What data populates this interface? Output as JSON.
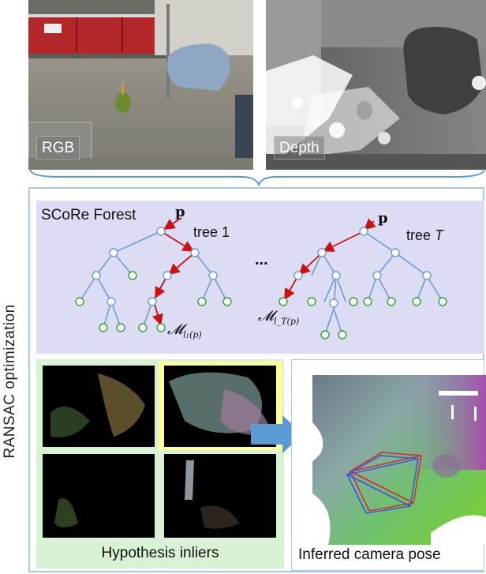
{
  "images": {
    "rgb_label": "RGB",
    "depth_label": "Depth"
  },
  "side_label": "RANSAC optimization",
  "forest": {
    "title": "SCoRe Forest",
    "point_symbol": "p",
    "tree1_label": "tree 1",
    "treeT_label_prefix": "tree ",
    "treeT_label_var": "T",
    "ellipsis": "...",
    "leaf1_label": "𝓜",
    "leaf1_sub": "l₁(p)",
    "leafT_label": "𝓜",
    "leafT_sub": "l_T(p)"
  },
  "hypothesis_caption": "Hypothesis inliers",
  "pose_caption": "Inferred camera pose",
  "colors": {
    "frame_border": "#a9c8e6",
    "forest_bg": "#dcdcf5",
    "inliers_bg": "#d9f2d4",
    "highlight": "#ffff99",
    "edge": "#6e9ccc",
    "red_path": "#cc1111",
    "leaf_stroke": "#2fa32f",
    "arrow_fill": "#5b9bd5"
  }
}
